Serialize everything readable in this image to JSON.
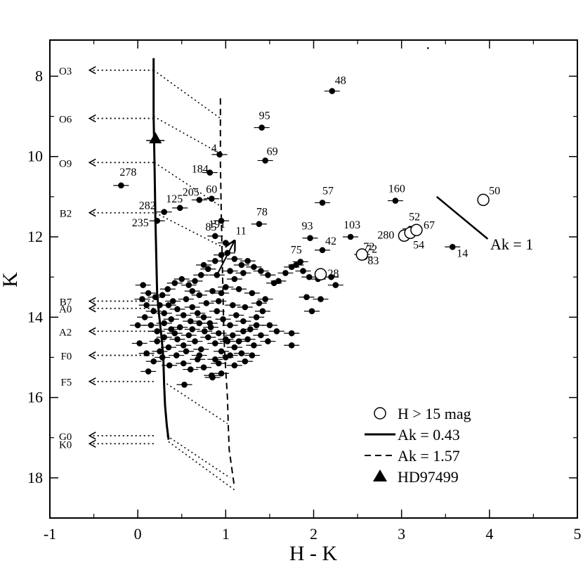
{
  "chart_data": {
    "type": "scatter",
    "title": "",
    "xlabel": "H - K",
    "ylabel": "K",
    "xlim": [
      -1,
      5
    ],
    "ylim": [
      19,
      7.1
    ],
    "y_inverted": true,
    "x_ticks": [
      -1,
      0,
      1,
      2,
      3,
      4,
      5
    ],
    "y_ticks": [
      8,
      10,
      12,
      14,
      16,
      18
    ],
    "x_minor_step": 0.5,
    "y_minor_step": 1,
    "grid": false,
    "legend_position": "bottom-right",
    "legend": [
      {
        "label": "H > 15 mag",
        "symbol": "open-circle"
      },
      {
        "label": "Ak = 0.43",
        "symbol": "solid-line"
      },
      {
        "label": "Ak = 1.57",
        "symbol": "dashed-line"
      },
      {
        "label": "HD97499",
        "symbol": "filled-triangle"
      }
    ],
    "labeled_stars": [
      {
        "label": "48",
        "x": 2.21,
        "y": 8.37
      },
      {
        "label": "95",
        "x": 1.41,
        "y": 9.28
      },
      {
        "label": "4",
        "x": 0.93,
        "y": 9.95
      },
      {
        "label": "69",
        "x": 1.45,
        "y": 10.1
      },
      {
        "label": "184",
        "x": 0.82,
        "y": 10.4
      },
      {
        "label": "278",
        "x": -0.19,
        "y": 10.72
      },
      {
        "label": "205",
        "x": 0.7,
        "y": 11.08
      },
      {
        "label": "60",
        "x": 0.84,
        "y": 11.05
      },
      {
        "label": "125",
        "x": 0.48,
        "y": 11.28
      },
      {
        "label": "282",
        "x": 0.3,
        "y": 11.38
      },
      {
        "label": "191",
        "x": 0.95,
        "y": 11.6
      },
      {
        "label": "235",
        "x": 0.22,
        "y": 11.6
      },
      {
        "label": "78",
        "x": 1.38,
        "y": 11.68
      },
      {
        "label": "85",
        "x": 0.88,
        "y": 11.98
      },
      {
        "label": "11",
        "x": 1.0,
        "y": 12.15
      },
      {
        "label": "57",
        "x": 2.1,
        "y": 11.15
      },
      {
        "label": "160",
        "x": 2.93,
        "y": 11.1
      },
      {
        "label": "93",
        "x": 1.96,
        "y": 12.03
      },
      {
        "label": "103",
        "x": 2.42,
        "y": 12.0
      },
      {
        "label": "42",
        "x": 2.1,
        "y": 12.33
      },
      {
        "label": "75",
        "x": 1.85,
        "y": 12.62
      },
      {
        "label": "72",
        "x": 2.58,
        "y": 12.5
      },
      {
        "label": "83",
        "x": 2.55,
        "y": 12.44
      },
      {
        "label": "52",
        "x": 3.1,
        "y": 11.8
      },
      {
        "label": "14",
        "x": 3.58,
        "y": 12.25
      }
    ],
    "open_circle_stars": [
      {
        "label": "50",
        "x": 3.93,
        "y": 11.08
      },
      {
        "label": "280",
        "x": 3.03,
        "y": 11.97
      },
      {
        "label": "54",
        "x": 3.1,
        "y": 11.9
      },
      {
        "label": "67",
        "x": 3.17,
        "y": 11.83
      },
      {
        "label": "72",
        "x": 2.55,
        "y": 12.44
      },
      {
        "label": "28",
        "x": 2.08,
        "y": 12.93
      }
    ],
    "unlabeled_points": [
      [
        0.06,
        13.2
      ],
      [
        0.12,
        13.4
      ],
      [
        0.2,
        13.5
      ],
      [
        0.28,
        13.45
      ],
      [
        0.34,
        13.3
      ],
      [
        0.42,
        13.15
      ],
      [
        0.5,
        13.05
      ],
      [
        0.58,
        13.2
      ],
      [
        0.65,
        13.1
      ],
      [
        0.72,
        12.95
      ],
      [
        0.8,
        12.8
      ],
      [
        0.88,
        12.6
      ],
      [
        0.95,
        12.45
      ],
      [
        1.02,
        12.4
      ],
      [
        1.1,
        12.55
      ],
      [
        1.18,
        12.7
      ],
      [
        1.25,
        12.6
      ],
      [
        1.32,
        12.75
      ],
      [
        1.4,
        12.85
      ],
      [
        1.48,
        12.95
      ],
      [
        1.55,
        13.15
      ],
      [
        1.6,
        13.1
      ],
      [
        1.68,
        12.9
      ],
      [
        1.75,
        12.75
      ],
      [
        1.8,
        12.7
      ],
      [
        1.88,
        12.85
      ],
      [
        1.95,
        13.0
      ],
      [
        2.05,
        13.05
      ],
      [
        2.2,
        13.0
      ],
      [
        2.25,
        13.2
      ],
      [
        1.92,
        13.5
      ],
      [
        2.08,
        13.55
      ],
      [
        1.98,
        13.85
      ],
      [
        0.05,
        13.55
      ],
      [
        0.1,
        13.7
      ],
      [
        0.18,
        13.85
      ],
      [
        0.25,
        13.7
      ],
      [
        0.3,
        13.9
      ],
      [
        0.38,
        14.05
      ],
      [
        0.45,
        13.8
      ],
      [
        0.52,
        13.95
      ],
      [
        0.6,
        14.1
      ],
      [
        0.68,
        13.9
      ],
      [
        0.75,
        14.0
      ],
      [
        0.82,
        14.15
      ],
      [
        0.9,
        13.85
      ],
      [
        0.97,
        14.05
      ],
      [
        1.05,
        14.2
      ],
      [
        1.12,
        13.95
      ],
      [
        1.2,
        14.1
      ],
      [
        1.28,
        14.3
      ],
      [
        1.35,
        14.0
      ],
      [
        1.42,
        13.85
      ],
      [
        1.5,
        14.2
      ],
      [
        1.58,
        14.35
      ],
      [
        0.08,
        14.0
      ],
      [
        0.15,
        14.2
      ],
      [
        0.22,
        14.35
      ],
      [
        0.3,
        14.5
      ],
      [
        0.38,
        14.3
      ],
      [
        0.45,
        14.55
      ],
      [
        0.52,
        14.7
      ],
      [
        0.58,
        14.45
      ],
      [
        0.65,
        14.6
      ],
      [
        0.72,
        14.8
      ],
      [
        0.8,
        14.5
      ],
      [
        0.88,
        14.65
      ],
      [
        0.95,
        14.85
      ],
      [
        1.02,
        14.6
      ],
      [
        1.1,
        14.75
      ],
      [
        1.18,
        14.9
      ],
      [
        1.25,
        14.55
      ],
      [
        1.32,
        14.7
      ],
      [
        1.4,
        14.45
      ],
      [
        1.48,
        14.6
      ],
      [
        1.75,
        14.4
      ],
      [
        1.75,
        14.7
      ],
      [
        0.02,
        14.65
      ],
      [
        0.1,
        14.9
      ],
      [
        0.18,
        15.1
      ],
      [
        0.28,
        15.0
      ],
      [
        0.36,
        15.2
      ],
      [
        0.44,
        14.95
      ],
      [
        0.52,
        15.15
      ],
      [
        0.6,
        15.3
      ],
      [
        0.68,
        15.05
      ],
      [
        0.75,
        15.25
      ],
      [
        0.84,
        15.45
      ],
      [
        0.92,
        15.15
      ],
      [
        1.0,
        15.0
      ],
      [
        1.1,
        15.2
      ],
      [
        1.22,
        15.1
      ],
      [
        1.3,
        14.95
      ],
      [
        0.12,
        15.35
      ],
      [
        0.53,
        15.68
      ],
      [
        0.85,
        15.5
      ],
      [
        0.95,
        15.4
      ],
      [
        0.4,
        13.6
      ],
      [
        0.55,
        13.55
      ],
      [
        0.7,
        13.45
      ],
      [
        0.85,
        13.35
      ],
      [
        1.0,
        13.25
      ],
      [
        1.15,
        13.3
      ],
      [
        1.3,
        13.4
      ],
      [
        1.45,
        13.55
      ],
      [
        0.35,
        13.7
      ],
      [
        0.62,
        13.75
      ],
      [
        0.78,
        13.65
      ],
      [
        0.92,
        13.6
      ],
      [
        1.08,
        13.7
      ],
      [
        1.22,
        13.75
      ],
      [
        1.38,
        13.65
      ],
      [
        0.48,
        14.25
      ],
      [
        0.62,
        14.3
      ],
      [
        0.76,
        14.35
      ],
      [
        0.92,
        14.4
      ],
      [
        1.08,
        14.45
      ],
      [
        1.2,
        14.35
      ],
      [
        0.35,
        14.75
      ],
      [
        0.55,
        14.85
      ],
      [
        0.7,
        14.95
      ],
      [
        0.88,
        15.05
      ],
      [
        1.05,
        14.95
      ],
      [
        0.0,
        14.2
      ],
      [
        0.22,
        14.6
      ],
      [
        0.9,
        12.95
      ],
      [
        1.05,
        12.85
      ],
      [
        1.2,
        12.9
      ],
      [
        0.75,
        12.7
      ],
      [
        1.1,
        13.05
      ],
      [
        0.62,
        13.35
      ],
      [
        0.83,
        14.25
      ],
      [
        1.0,
        14.55
      ],
      [
        0.3,
        14.15
      ],
      [
        1.35,
        14.2
      ],
      [
        0.95,
        13.4
      ],
      [
        1.15,
        14.6
      ],
      [
        0.42,
        14.4
      ],
      [
        0.7,
        14.15
      ],
      [
        0.25,
        14.85
      ]
    ],
    "spectral_types": [
      {
        "label": "O3",
        "k": 7.85
      },
      {
        "label": "O6",
        "k": 9.05
      },
      {
        "label": "O9",
        "k": 10.15
      },
      {
        "label": "B2",
        "k": 11.4
      },
      {
        "label": "B7",
        "k": 13.6
      },
      {
        "label": "A0",
        "k": 13.78
      },
      {
        "label": "A2",
        "k": 14.35
      },
      {
        "label": "F0",
        "k": 14.95
      },
      {
        "label": "F5",
        "k": 15.6
      },
      {
        "label": "G0",
        "k": 16.95
      },
      {
        "label": "K0",
        "k": 17.15
      }
    ],
    "spectral_label_hk": -0.75,
    "spectral_arrow_hk": -0.55,
    "ms_ak043": [
      [
        0.18,
        7.55
      ],
      [
        0.18,
        9.0
      ],
      [
        0.19,
        10.1
      ],
      [
        0.2,
        11.5
      ],
      [
        0.21,
        12.5
      ],
      [
        0.22,
        13.4
      ],
      [
        0.24,
        13.9
      ],
      [
        0.27,
        14.5
      ],
      [
        0.29,
        15.0
      ],
      [
        0.3,
        15.7
      ],
      [
        0.31,
        16.2
      ],
      [
        0.33,
        16.7
      ],
      [
        0.35,
        17.05
      ]
    ],
    "ms_ak157": [
      [
        0.94,
        8.55
      ],
      [
        0.94,
        10.2
      ],
      [
        0.95,
        11.5
      ],
      [
        0.96,
        12.5
      ],
      [
        0.97,
        13.5
      ],
      [
        0.98,
        14.5
      ],
      [
        1.0,
        15.3
      ],
      [
        1.02,
        16.0
      ],
      [
        1.03,
        16.75
      ],
      [
        1.04,
        17.3
      ],
      [
        1.1,
        18.25
      ]
    ],
    "reddening_lines": [
      [
        [
          0.18,
          7.85
        ],
        [
          0.94,
          9.05
        ]
      ],
      [
        [
          0.18,
          9.0
        ],
        [
          0.94,
          9.93
        ]
      ],
      [
        [
          0.19,
          10.15
        ],
        [
          0.95,
          11.25
        ]
      ],
      [
        [
          0.2,
          11.4
        ],
        [
          0.96,
          12.25
        ]
      ],
      [
        [
          0.29,
          15.6
        ],
        [
          1.02,
          16.65
        ]
      ],
      [
        [
          0.33,
          16.95
        ],
        [
          1.05,
          18.0
        ]
      ],
      [
        [
          0.35,
          17.1
        ],
        [
          1.1,
          18.3
        ]
      ]
    ],
    "reddening_vector": {
      "from": [
        0.9,
        12.95
      ],
      "to": [
        1.1,
        12.1
      ]
    },
    "ak1_vector": {
      "from": [
        3.4,
        11.0
      ],
      "to": [
        3.98,
        12.05
      ],
      "label": "Ak = 1"
    },
    "hd97499": {
      "x": 0.2,
      "y": 9.6
    },
    "stray_dot": {
      "x": 3.3,
      "y": 7.3
    }
  }
}
